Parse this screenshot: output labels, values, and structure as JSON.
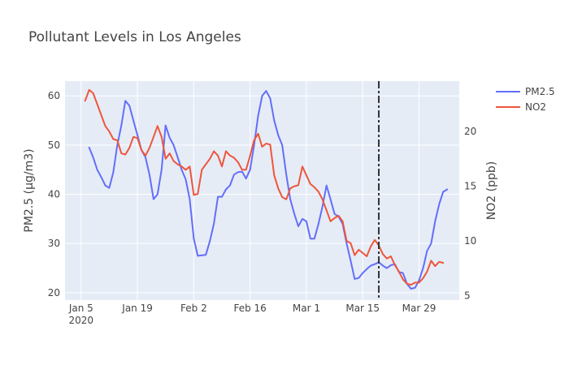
{
  "chart_data": {
    "type": "line",
    "title": "Pollutant Levels in Los Angeles",
    "x_axis": {
      "type": "date",
      "range": [
        "2020-01-01",
        "2020-04-08"
      ],
      "tick_labels": [
        {
          "date": "2020-01-05",
          "label": "Jan 5",
          "sublabel": "2020"
        },
        {
          "date": "2020-01-19",
          "label": "Jan 19"
        },
        {
          "date": "2020-02-02",
          "label": "Feb 2"
        },
        {
          "date": "2020-02-16",
          "label": "Feb 16"
        },
        {
          "date": "2020-03-01",
          "label": "Mar 1"
        },
        {
          "date": "2020-03-15",
          "label": "Mar 15"
        },
        {
          "date": "2020-03-29",
          "label": "Mar 29"
        }
      ]
    },
    "y_axis_left": {
      "label": "PM2.5 (μg/m3)",
      "range": [
        18.5,
        63
      ],
      "ticks": [
        20,
        30,
        40,
        50,
        60
      ]
    },
    "y_axis_right": {
      "label": "NO2 (ppb)",
      "range": [
        4.6,
        24.6
      ],
      "ticks": [
        5,
        10,
        15,
        20
      ]
    },
    "grid": true,
    "legend": {
      "position": "top-right"
    },
    "vline": {
      "date": "2020-03-19",
      "style": "dashdot",
      "color": "#333333"
    },
    "series": [
      {
        "name": "PM2.5",
        "color": "#636efa",
        "axis": "left",
        "points": [
          [
            "2020-01-07",
            49.5
          ],
          [
            "2020-01-08",
            47.5
          ],
          [
            "2020-01-09",
            45
          ],
          [
            "2020-01-10",
            43.5
          ],
          [
            "2020-01-11",
            41.8
          ],
          [
            "2020-01-12",
            41.3
          ],
          [
            "2020-01-13",
            44.5
          ],
          [
            "2020-01-14",
            50
          ],
          [
            "2020-01-15",
            54
          ],
          [
            "2020-01-16",
            59
          ],
          [
            "2020-01-17",
            58
          ],
          [
            "2020-01-18",
            55
          ],
          [
            "2020-01-19",
            52
          ],
          [
            "2020-01-20",
            49
          ],
          [
            "2020-01-21",
            47.5
          ],
          [
            "2020-01-22",
            44
          ],
          [
            "2020-01-23",
            39
          ],
          [
            "2020-01-24",
            40
          ],
          [
            "2020-01-25",
            45
          ],
          [
            "2020-01-26",
            54
          ],
          [
            "2020-01-27",
            51.5
          ],
          [
            "2020-01-28",
            50
          ],
          [
            "2020-01-29",
            47.5
          ],
          [
            "2020-01-30",
            45
          ],
          [
            "2020-01-31",
            43
          ],
          [
            "2020-02-01",
            39
          ],
          [
            "2020-02-02",
            31
          ],
          [
            "2020-02-03",
            27.5
          ],
          [
            "2020-02-04",
            27.6
          ],
          [
            "2020-02-05",
            27.7
          ],
          [
            "2020-02-06",
            30.5
          ],
          [
            "2020-02-07",
            34
          ],
          [
            "2020-02-08",
            39.5
          ],
          [
            "2020-02-09",
            39.5
          ],
          [
            "2020-02-10",
            41
          ],
          [
            "2020-02-11",
            41.8
          ],
          [
            "2020-02-12",
            44
          ],
          [
            "2020-02-13",
            44.5
          ],
          [
            "2020-02-14",
            44.6
          ],
          [
            "2020-02-15",
            43.2
          ],
          [
            "2020-02-16",
            45
          ],
          [
            "2020-02-17",
            50
          ],
          [
            "2020-02-18",
            56
          ],
          [
            "2020-02-19",
            60
          ],
          [
            "2020-02-20",
            61
          ],
          [
            "2020-02-21",
            59.5
          ],
          [
            "2020-02-22",
            55
          ],
          [
            "2020-02-23",
            52
          ],
          [
            "2020-02-24",
            50
          ],
          [
            "2020-02-25",
            44
          ],
          [
            "2020-02-26",
            39
          ],
          [
            "2020-02-27",
            36
          ],
          [
            "2020-02-28",
            33.5
          ],
          [
            "2020-02-29",
            35
          ],
          [
            "2020-03-01",
            34.5
          ],
          [
            "2020-03-02",
            31
          ],
          [
            "2020-03-03",
            31
          ],
          [
            "2020-03-04",
            34
          ],
          [
            "2020-03-05",
            37.5
          ],
          [
            "2020-03-06",
            41.8
          ],
          [
            "2020-03-07",
            39
          ],
          [
            "2020-03-08",
            36
          ],
          [
            "2020-03-09",
            35.5
          ],
          [
            "2020-03-10",
            34
          ],
          [
            "2020-03-11",
            30
          ],
          [
            "2020-03-12",
            26.5
          ],
          [
            "2020-03-13",
            22.8
          ],
          [
            "2020-03-14",
            23
          ],
          [
            "2020-03-15",
            24
          ],
          [
            "2020-03-16",
            24.8
          ],
          [
            "2020-03-17",
            25.5
          ],
          [
            "2020-03-18",
            25.8
          ],
          [
            "2020-03-19",
            26.2
          ],
          [
            "2020-03-20",
            25.5
          ],
          [
            "2020-03-21",
            25
          ],
          [
            "2020-03-22",
            25.6
          ],
          [
            "2020-03-23",
            25.8
          ],
          [
            "2020-03-24",
            24.2
          ],
          [
            "2020-03-25",
            24
          ],
          [
            "2020-03-26",
            21.8
          ],
          [
            "2020-03-27",
            20.8
          ],
          [
            "2020-03-28",
            21
          ],
          [
            "2020-03-29",
            22.5
          ],
          [
            "2020-03-30",
            25
          ],
          [
            "2020-03-31",
            28.5
          ],
          [
            "2020-04-01",
            30
          ],
          [
            "2020-04-02",
            34.5
          ],
          [
            "2020-04-03",
            38
          ],
          [
            "2020-04-04",
            40.5
          ],
          [
            "2020-04-05",
            41
          ]
        ]
      },
      {
        "name": "NO2",
        "color": "#ef553b",
        "axis": "right",
        "points": [
          [
            "2020-01-06",
            22.8
          ],
          [
            "2020-01-07",
            23.8
          ],
          [
            "2020-01-08",
            23.5
          ],
          [
            "2020-01-09",
            22.5
          ],
          [
            "2020-01-10",
            21.5
          ],
          [
            "2020-01-11",
            20.5
          ],
          [
            "2020-01-12",
            20
          ],
          [
            "2020-01-13",
            19.3
          ],
          [
            "2020-01-14",
            19.2
          ],
          [
            "2020-01-15",
            18
          ],
          [
            "2020-01-16",
            17.9
          ],
          [
            "2020-01-17",
            18.5
          ],
          [
            "2020-01-18",
            19.5
          ],
          [
            "2020-01-19",
            19.4
          ],
          [
            "2020-01-20",
            18.3
          ],
          [
            "2020-01-21",
            17.8
          ],
          [
            "2020-01-22",
            18.5
          ],
          [
            "2020-01-23",
            19.5
          ],
          [
            "2020-01-24",
            20.5
          ],
          [
            "2020-01-25",
            19.5
          ],
          [
            "2020-01-26",
            17.5
          ],
          [
            "2020-01-27",
            18
          ],
          [
            "2020-01-28",
            17.3
          ],
          [
            "2020-01-29",
            17
          ],
          [
            "2020-01-30",
            16.8
          ],
          [
            "2020-01-31",
            16.5
          ],
          [
            "2020-02-01",
            16.8
          ],
          [
            "2020-02-02",
            14.2
          ],
          [
            "2020-02-03",
            14.3
          ],
          [
            "2020-02-04",
            16.5
          ],
          [
            "2020-02-05",
            17
          ],
          [
            "2020-02-06",
            17.5
          ],
          [
            "2020-02-07",
            18.2
          ],
          [
            "2020-02-08",
            17.8
          ],
          [
            "2020-02-09",
            16.8
          ],
          [
            "2020-02-10",
            18.2
          ],
          [
            "2020-02-11",
            17.8
          ],
          [
            "2020-02-12",
            17.6
          ],
          [
            "2020-02-13",
            17.2
          ],
          [
            "2020-02-14",
            16.5
          ],
          [
            "2020-02-15",
            16.5
          ],
          [
            "2020-02-16",
            17.8
          ],
          [
            "2020-02-17",
            19.2
          ],
          [
            "2020-02-18",
            19.8
          ],
          [
            "2020-02-19",
            18.6
          ],
          [
            "2020-02-20",
            18.9
          ],
          [
            "2020-02-21",
            18.8
          ],
          [
            "2020-02-22",
            16
          ],
          [
            "2020-02-23",
            14.8
          ],
          [
            "2020-02-24",
            14
          ],
          [
            "2020-02-25",
            13.8
          ],
          [
            "2020-02-26",
            14.8
          ],
          [
            "2020-02-27",
            15
          ],
          [
            "2020-02-28",
            15.1
          ],
          [
            "2020-02-29",
            16.8
          ],
          [
            "2020-03-01",
            16
          ],
          [
            "2020-03-02",
            15.2
          ],
          [
            "2020-03-03",
            14.9
          ],
          [
            "2020-03-04",
            14.5
          ],
          [
            "2020-03-05",
            13.8
          ],
          [
            "2020-03-06",
            12.8
          ],
          [
            "2020-03-07",
            11.8
          ],
          [
            "2020-03-08",
            12.1
          ],
          [
            "2020-03-09",
            12.3
          ],
          [
            "2020-03-10",
            11.8
          ],
          [
            "2020-03-11",
            10
          ],
          [
            "2020-03-12",
            9.8
          ],
          [
            "2020-03-13",
            8.7
          ],
          [
            "2020-03-14",
            9.2
          ],
          [
            "2020-03-15",
            8.9
          ],
          [
            "2020-03-16",
            8.6
          ],
          [
            "2020-03-17",
            9.5
          ],
          [
            "2020-03-18",
            10.1
          ],
          [
            "2020-03-19",
            9.6
          ],
          [
            "2020-03-20",
            8.8
          ],
          [
            "2020-03-21",
            8.4
          ],
          [
            "2020-03-22",
            8.6
          ],
          [
            "2020-03-23",
            7.8
          ],
          [
            "2020-03-24",
            7.2
          ],
          [
            "2020-03-25",
            6.5
          ],
          [
            "2020-03-26",
            6.1
          ],
          [
            "2020-03-27",
            6
          ],
          [
            "2020-03-28",
            6.2
          ],
          [
            "2020-03-29",
            6.2
          ],
          [
            "2020-03-30",
            6.6
          ],
          [
            "2020-03-31",
            7.2
          ],
          [
            "2020-04-01",
            8.2
          ],
          [
            "2020-04-02",
            7.7
          ],
          [
            "2020-04-03",
            8.1
          ],
          [
            "2020-04-04",
            8
          ]
        ]
      }
    ]
  }
}
